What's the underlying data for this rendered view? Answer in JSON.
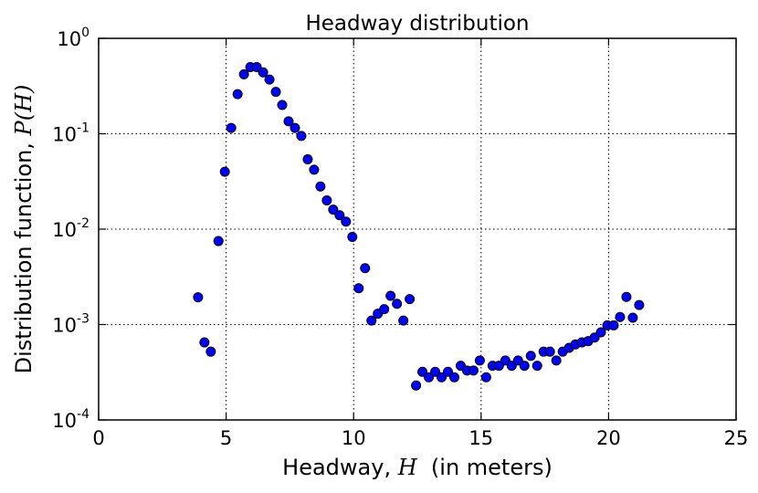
{
  "chart_data": {
    "type": "scatter",
    "title": "Headway distribution",
    "xlabel": {
      "prefix": "Headway, ",
      "symbol": "H",
      "suffix": "  (in meters)"
    },
    "ylabel": {
      "prefix": "Distribution function, ",
      "symbol": "P(H)"
    },
    "xlim": [
      0,
      25
    ],
    "ylim": [
      0.0001,
      1
    ],
    "yscale": "log",
    "xticks": [
      0,
      5,
      10,
      15,
      20,
      25
    ],
    "xtick_labels": [
      "0",
      "5",
      "10",
      "15",
      "20",
      "25"
    ],
    "yticks": [
      {
        "value": 0.0001,
        "base": "10",
        "exp": "-4"
      },
      {
        "value": 0.001,
        "base": "10",
        "exp": "-3"
      },
      {
        "value": 0.01,
        "base": "10",
        "exp": "-2"
      },
      {
        "value": 0.1,
        "base": "10",
        "exp": "-1"
      },
      {
        "value": 1,
        "base": "10",
        "exp": "0"
      }
    ],
    "grid": true,
    "marker_color": "#0000ff",
    "marker_edge": "#000000",
    "series": [
      {
        "points": [
          [
            3.9,
            0.00193
          ],
          [
            4.15,
            0.00065
          ],
          [
            4.4,
            0.00052
          ],
          [
            4.7,
            0.0075
          ],
          [
            4.95,
            0.04
          ],
          [
            5.2,
            0.115
          ],
          [
            5.45,
            0.26
          ],
          [
            5.7,
            0.42
          ],
          [
            5.95,
            0.5
          ],
          [
            6.2,
            0.5
          ],
          [
            6.45,
            0.44
          ],
          [
            6.7,
            0.37
          ],
          [
            6.95,
            0.275
          ],
          [
            7.2,
            0.2
          ],
          [
            7.45,
            0.135
          ],
          [
            7.7,
            0.115
          ],
          [
            7.95,
            0.095
          ],
          [
            8.2,
            0.054
          ],
          [
            8.45,
            0.042
          ],
          [
            8.7,
            0.028
          ],
          [
            8.95,
            0.02
          ],
          [
            9.2,
            0.016
          ],
          [
            9.45,
            0.014
          ],
          [
            9.7,
            0.012
          ],
          [
            9.95,
            0.0083
          ],
          [
            10.2,
            0.0024
          ],
          [
            10.45,
            0.0039
          ],
          [
            10.7,
            0.0011
          ],
          [
            10.95,
            0.0013
          ],
          [
            11.2,
            0.00145
          ],
          [
            11.45,
            0.002
          ],
          [
            11.7,
            0.00165
          ],
          [
            11.95,
            0.0011
          ],
          [
            12.2,
            0.00185
          ],
          [
            12.45,
            0.00023
          ],
          [
            12.7,
            0.00032
          ],
          [
            12.95,
            0.00028
          ],
          [
            13.2,
            0.00032
          ],
          [
            13.45,
            0.00028
          ],
          [
            13.7,
            0.00032
          ],
          [
            13.95,
            0.00028
          ],
          [
            14.2,
            0.00037
          ],
          [
            14.45,
            0.00033
          ],
          [
            14.7,
            0.00033
          ],
          [
            14.95,
            0.00042
          ],
          [
            15.2,
            0.00028
          ],
          [
            15.45,
            0.00037
          ],
          [
            15.7,
            0.00037
          ],
          [
            15.95,
            0.00042
          ],
          [
            16.2,
            0.00037
          ],
          [
            16.45,
            0.00042
          ],
          [
            16.7,
            0.00037
          ],
          [
            16.95,
            0.00047
          ],
          [
            17.2,
            0.00037
          ],
          [
            17.45,
            0.00052
          ],
          [
            17.7,
            0.00052
          ],
          [
            17.95,
            0.00042
          ],
          [
            18.2,
            0.00052
          ],
          [
            18.45,
            0.00057
          ],
          [
            18.7,
            0.00062
          ],
          [
            18.95,
            0.00065
          ],
          [
            19.2,
            0.00067
          ],
          [
            19.45,
            0.00073
          ],
          [
            19.7,
            0.00083
          ],
          [
            19.95,
            0.00098
          ],
          [
            20.2,
            0.00098
          ],
          [
            20.45,
            0.0012
          ],
          [
            20.7,
            0.00195
          ],
          [
            20.95,
            0.00118
          ],
          [
            21.2,
            0.0016
          ]
        ]
      }
    ]
  }
}
